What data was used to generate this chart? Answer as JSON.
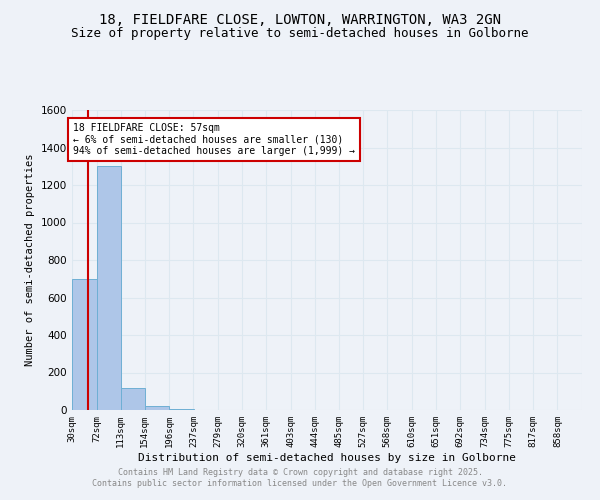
{
  "title": "18, FIELDFARE CLOSE, LOWTON, WARRINGTON, WA3 2GN",
  "subtitle": "Size of property relative to semi-detached houses in Golborne",
  "xlabel": "Distribution of semi-detached houses by size in Golborne",
  "ylabel": "Number of semi-detached properties",
  "bin_labels": [
    "30sqm",
    "72sqm",
    "113sqm",
    "154sqm",
    "196sqm",
    "237sqm",
    "279sqm",
    "320sqm",
    "361sqm",
    "403sqm",
    "444sqm",
    "485sqm",
    "527sqm",
    "568sqm",
    "610sqm",
    "651sqm",
    "692sqm",
    "734sqm",
    "775sqm",
    "817sqm",
    "858sqm"
  ],
  "bin_edges": [
    30,
    72,
    113,
    154,
    196,
    237,
    279,
    320,
    361,
    403,
    444,
    485,
    527,
    568,
    610,
    651,
    692,
    734,
    775,
    817,
    858
  ],
  "bar_heights": [
    700,
    1300,
    120,
    20,
    5,
    0,
    0,
    0,
    0,
    0,
    0,
    0,
    0,
    0,
    0,
    0,
    0,
    0,
    0,
    0
  ],
  "bar_color": "#aec6e8",
  "bar_edge_color": "#6fafd4",
  "grid_color": "#dde8f0",
  "vline_x": 57,
  "vline_color": "#cc0000",
  "annotation_line1": "18 FIELDFARE CLOSE: 57sqm",
  "annotation_line2": "← 6% of semi-detached houses are smaller (130)",
  "annotation_line3": "94% of semi-detached houses are larger (1,999) →",
  "annotation_box_color": "#cc0000",
  "ylim": [
    0,
    1600
  ],
  "title_fontsize": 10,
  "subtitle_fontsize": 9,
  "footer_line1": "Contains HM Land Registry data © Crown copyright and database right 2025.",
  "footer_line2": "Contains public sector information licensed under the Open Government Licence v3.0.",
  "footer_color": "#888888",
  "background_color": "#eef2f8"
}
